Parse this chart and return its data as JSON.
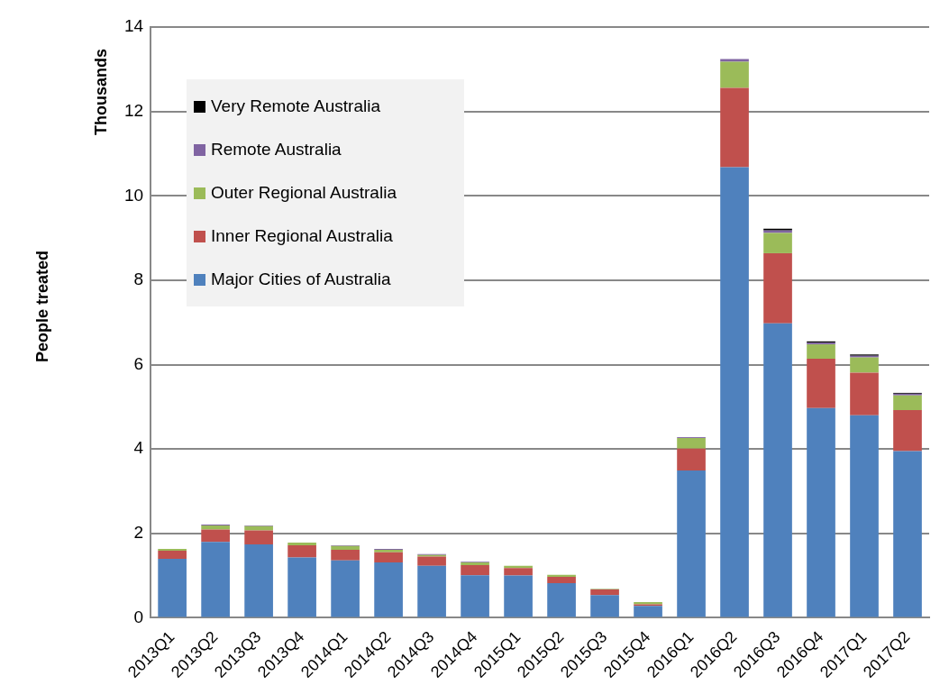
{
  "chart_data": {
    "type": "bar",
    "stacked": true,
    "ylabel": "People treated",
    "annotations": [
      "Thousands"
    ],
    "categories": [
      "2013Q1",
      "2013Q2",
      "2013Q3",
      "2013Q4",
      "2014Q1",
      "2014Q2",
      "2014Q3",
      "2014Q4",
      "2015Q1",
      "2015Q2",
      "2015Q3",
      "2015Q4",
      "2016Q1",
      "2016Q2",
      "2016Q3",
      "2016Q4",
      "2017Q1",
      "2017Q2"
    ],
    "series": [
      {
        "name": "Major Cities of Australia",
        "color": "#4f81bd",
        "values": [
          1.4,
          1.8,
          1.74,
          1.43,
          1.36,
          1.31,
          1.23,
          1.01,
          1.0,
          0.82,
          0.54,
          0.28,
          3.49,
          10.68,
          6.98,
          4.97,
          4.8,
          3.95
        ]
      },
      {
        "name": "Inner Regional Australia",
        "color": "#c0504d",
        "values": [
          0.19,
          0.29,
          0.33,
          0.29,
          0.25,
          0.24,
          0.22,
          0.24,
          0.18,
          0.15,
          0.13,
          0.04,
          0.52,
          1.88,
          1.66,
          1.17,
          1.01,
          0.97
        ]
      },
      {
        "name": "Outer Regional Australia",
        "color": "#9bbb59",
        "values": [
          0.04,
          0.1,
          0.1,
          0.06,
          0.09,
          0.06,
          0.04,
          0.06,
          0.05,
          0.05,
          0.01,
          0.05,
          0.25,
          0.62,
          0.48,
          0.34,
          0.36,
          0.35
        ]
      },
      {
        "name": "Remote Australia",
        "color": "#8064a2",
        "values": [
          null,
          0.02,
          0.02,
          null,
          0.02,
          0.02,
          0.02,
          0.02,
          null,
          null,
          0.01,
          null,
          0.02,
          0.06,
          0.06,
          0.04,
          0.04,
          0.04
        ]
      },
      {
        "name": "Very Remote Australia",
        "color": "#000000",
        "values": [
          0,
          0,
          0,
          0,
          0,
          0,
          0,
          0,
          0,
          0,
          0,
          0,
          0,
          0,
          0.04,
          0.03,
          0.03,
          0.02
        ]
      }
    ],
    "ylim": [
      0,
      14
    ],
    "yticks": [
      0,
      2,
      4,
      6,
      8,
      10,
      12,
      14
    ],
    "grid": "y",
    "legend": "top left"
  }
}
